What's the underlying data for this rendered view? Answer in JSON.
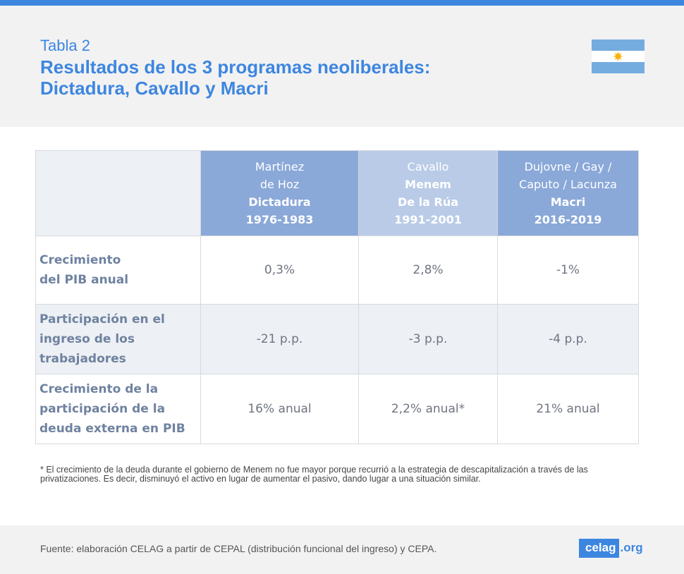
{
  "header": {
    "label": "Tabla 2",
    "title_line1": "Resultados de los 3 programas neoliberales:",
    "title_line2": "Dictadura, Cavallo y Macri",
    "flag": {
      "icon": "argentina-flag-icon",
      "stripe_color": "#74acdf",
      "sun_color": "#f6b40e"
    }
  },
  "table": {
    "columns": [
      {
        "lines": [
          "Martínez",
          "de Hoz"
        ],
        "bold_lines": [
          "Dictadura",
          "1976-1983"
        ]
      },
      {
        "lines": [
          "Cavallo"
        ],
        "bold_lines": [
          "Menem",
          "De la Rúa",
          "1991-2001"
        ]
      },
      {
        "lines": [
          "Dujovne / Gay /",
          "Caputo / Lacunza"
        ],
        "bold_lines": [
          "Macri",
          "2016-2019"
        ]
      }
    ],
    "rows": [
      {
        "label_lines": [
          "Crecimiento",
          "del PIB anual"
        ],
        "values": [
          "0,3%",
          "2,8%",
          "-1%"
        ]
      },
      {
        "label_lines": [
          "Participación en el",
          "ingreso de los",
          "trabajadores"
        ],
        "values": [
          "-21 p.p.",
          "-3 p.p.",
          "-4 p.p."
        ]
      },
      {
        "label_lines": [
          "Crecimiento de la",
          "participación de la",
          "deuda externa en PIB"
        ],
        "values": [
          "16% anual",
          "2,2% anual*",
          "21% anual"
        ]
      }
    ]
  },
  "footnote": "* El crecimiento de la deuda durante el gobierno de Menem no fue mayor porque recurrió a la estrategia de descapitalización a través de las privatizaciones. Es decir, disminuyó el activo en lugar de aumentar el pasivo, dando lugar a una situación similar.",
  "source": "Fuente: elaboración CELAG a partir de CEPAL (distribución funcional del ingreso) y CEPA.",
  "brand": {
    "name": "celag",
    "tld": ".org",
    "color": "#3d86e0"
  }
}
